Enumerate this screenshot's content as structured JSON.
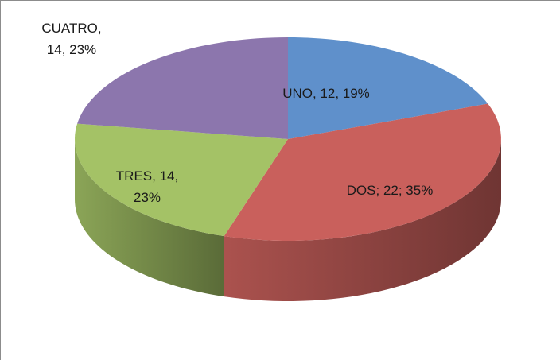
{
  "chart_data": {
    "type": "pie",
    "values": [
      12,
      22,
      14,
      14
    ],
    "value_labels": [
      "UNO, 12, 19%",
      "DOS; 22; 35%",
      "TRES, 14, 23%",
      "CUATRO, 14, 23%"
    ],
    "colors": [
      "#5f90cb",
      "#c9605c",
      "#a4c266",
      "#8c76ad"
    ]
  }
}
